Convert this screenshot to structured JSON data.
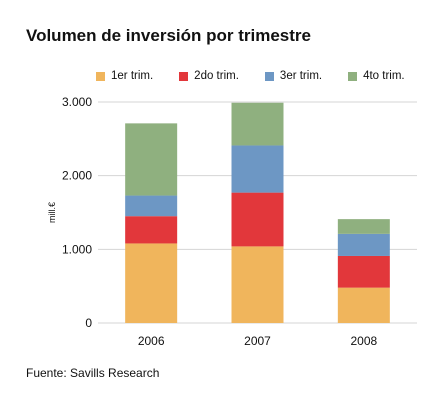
{
  "chart_data": {
    "type": "bar",
    "stacked": true,
    "title": "Volumen de inversión por trimestre",
    "xlabel": "",
    "ylabel": "mill.€",
    "categories": [
      "2006",
      "2007",
      "2008"
    ],
    "series": [
      {
        "name": "1er trim.",
        "color": "#f0b55c",
        "values": [
          1080,
          1040,
          480
        ]
      },
      {
        "name": "2do trim.",
        "color": "#e2373b",
        "values": [
          370,
          730,
          430
        ]
      },
      {
        "name": "3er trim.",
        "color": "#6d97c4",
        "values": [
          280,
          640,
          300
        ]
      },
      {
        "name": "4to trim.",
        "color": "#8fb07f",
        "values": [
          980,
          580,
          200
        ]
      }
    ],
    "ylim": [
      0,
      3000
    ],
    "yticks": [
      0,
      1000,
      2000,
      3000
    ],
    "ytick_labels": [
      "0",
      "1.000",
      "2.000",
      "3.000"
    ],
    "grid": true,
    "legend_position": "top",
    "source": "Fuente: Savills Research"
  }
}
